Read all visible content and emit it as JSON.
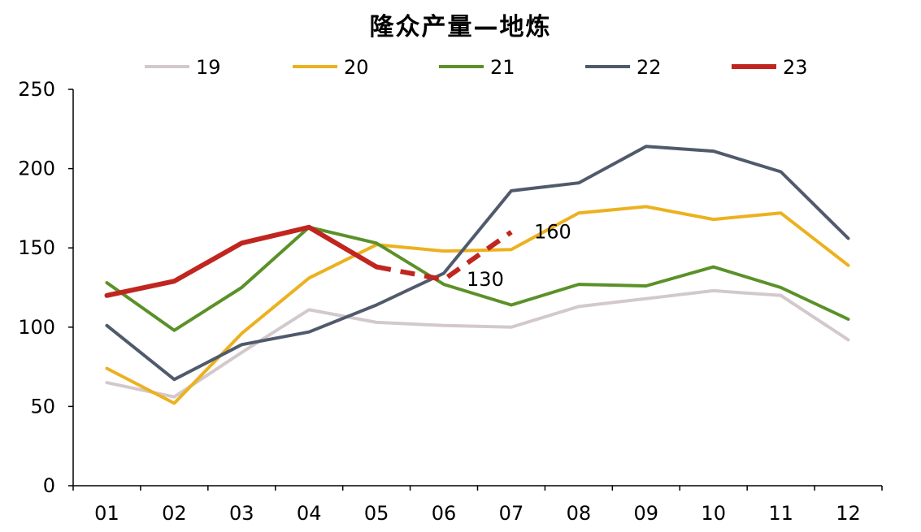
{
  "chart_data": {
    "type": "line",
    "title": "隆众产量—地炼",
    "xlabel": "",
    "ylabel": "",
    "categories": [
      "01",
      "02",
      "03",
      "04",
      "05",
      "06",
      "07",
      "08",
      "09",
      "10",
      "11",
      "12"
    ],
    "ylim": [
      0,
      250
    ],
    "yticks": [
      0,
      50,
      100,
      150,
      200,
      250
    ],
    "grid": false,
    "legend_position": "top",
    "series": [
      {
        "name": "19",
        "color": "#d3c8cb",
        "width": 4,
        "values": [
          65,
          56,
          84,
          111,
          103,
          101,
          100,
          113,
          118,
          123,
          120,
          92
        ]
      },
      {
        "name": "20",
        "color": "#ecb11f",
        "width": 4,
        "values": [
          74,
          52,
          96,
          131,
          152,
          148,
          149,
          172,
          176,
          168,
          172,
          139
        ]
      },
      {
        "name": "21",
        "color": "#5a9128",
        "width": 4,
        "values": [
          128,
          98,
          125,
          163,
          153,
          127,
          114,
          127,
          126,
          138,
          125,
          105
        ]
      },
      {
        "name": "22",
        "color": "#505a6c",
        "width": 4,
        "values": [
          101,
          67,
          89,
          97,
          114,
          134,
          186,
          191,
          214,
          211,
          198,
          156
        ]
      },
      {
        "name": "23",
        "color": "#c0261f",
        "width": 6,
        "values": [
          120,
          129,
          153,
          163,
          138,
          130,
          160,
          null,
          null,
          null,
          null,
          null
        ],
        "dashed_from_index": 4
      }
    ],
    "annotations": [
      {
        "text": "160",
        "x": "07",
        "y": 160
      },
      {
        "text": "130",
        "x": "06",
        "y": 130
      }
    ]
  }
}
